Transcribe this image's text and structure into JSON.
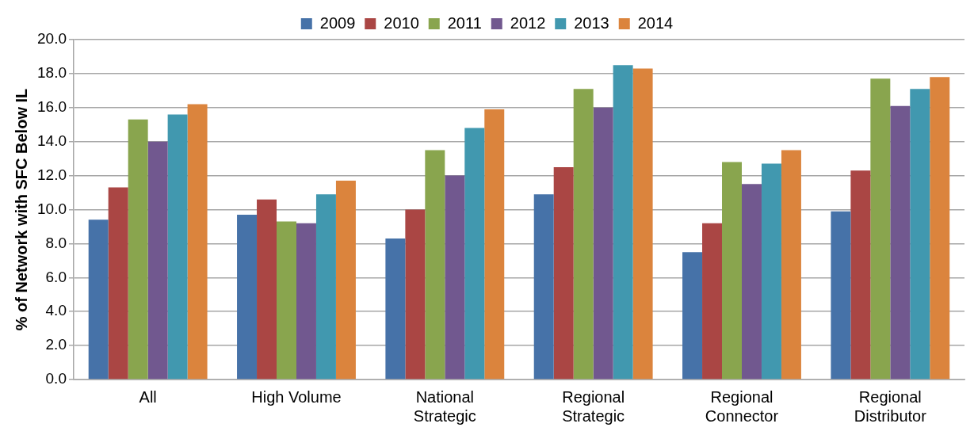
{
  "chart_data": {
    "type": "bar",
    "ylabel": "% of Network with SFC Below IL",
    "categories": [
      "All",
      "High Volume",
      "National Strategic",
      "Regional Strategic",
      "Regional Connector",
      "Regional Distributor"
    ],
    "series": [
      {
        "name": "2009",
        "color": "#4672a8",
        "values": [
          9.4,
          9.7,
          8.3,
          10.9,
          7.5,
          9.9
        ]
      },
      {
        "name": "2010",
        "color": "#aa4644",
        "values": [
          11.3,
          10.6,
          10.0,
          12.5,
          9.2,
          12.3
        ]
      },
      {
        "name": "2011",
        "color": "#89a54e",
        "values": [
          15.3,
          9.3,
          13.5,
          17.1,
          12.8,
          17.7
        ]
      },
      {
        "name": "2012",
        "color": "#71588f",
        "values": [
          14.0,
          9.2,
          12.0,
          16.0,
          11.5,
          16.1
        ]
      },
      {
        "name": "2013",
        "color": "#4198af",
        "values": [
          15.6,
          10.9,
          14.8,
          18.5,
          12.7,
          17.1
        ]
      },
      {
        "name": "2014",
        "color": "#db843d",
        "values": [
          16.2,
          11.7,
          15.9,
          18.3,
          13.5,
          17.8
        ]
      }
    ],
    "ylim": [
      0,
      20
    ],
    "yticks": [
      {
        "value": 0,
        "label": "0.0"
      },
      {
        "value": 2,
        "label": "2.0"
      },
      {
        "value": 4,
        "label": "4.0"
      },
      {
        "value": 6,
        "label": "6.0"
      },
      {
        "value": 8,
        "label": "8.0"
      },
      {
        "value": 10,
        "label": "10.0"
      },
      {
        "value": 12,
        "label": "12.0"
      },
      {
        "value": 14,
        "label": "14.0"
      },
      {
        "value": 16,
        "label": "16.0"
      },
      {
        "value": 18,
        "label": "18.0"
      },
      {
        "value": 20,
        "label": "20.0"
      }
    ],
    "grid": "y",
    "legend": "top"
  }
}
